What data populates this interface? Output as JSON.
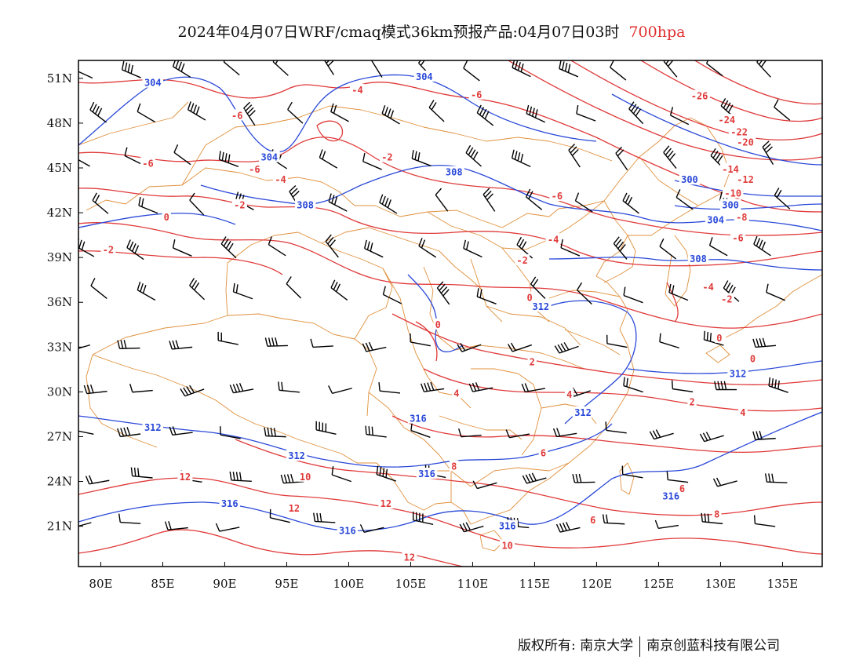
{
  "title": {
    "main": "2024年04月07日WRF/cmaq模式36km预报产品:04月07日03时",
    "level": "700hpa"
  },
  "colors": {
    "height_contour": "#2a49d8",
    "temperature_contour": "#e03a3a",
    "province_border": "#e0903c",
    "wind_barb": "#000000",
    "frame": "#000000",
    "level_text": "#e03030"
  },
  "axes": {
    "lon_ticks": [
      "80E",
      "85E",
      "90E",
      "95E",
      "100E",
      "105E",
      "110E",
      "115E",
      "120E",
      "125E",
      "130E",
      "135E"
    ],
    "lat_ticks": [
      "51N",
      "48N",
      "45N",
      "42N",
      "39N",
      "36N",
      "33N",
      "30N",
      "27N",
      "24N",
      "21N"
    ],
    "lon_values": [
      80,
      85,
      90,
      95,
      100,
      105,
      110,
      115,
      120,
      125,
      130,
      135
    ],
    "lat_values": [
      51,
      48,
      45,
      42,
      39,
      36,
      33,
      30,
      27,
      24,
      21
    ]
  },
  "height_labels": [
    {
      "text": "304",
      "lon": 84.2,
      "lat": 50.7
    },
    {
      "text": "304",
      "lon": 106.1,
      "lat": 51.1
    },
    {
      "text": "304",
      "lon": 93.6,
      "lat": 45.7
    },
    {
      "text": "308",
      "lon": 108.5,
      "lat": 44.7
    },
    {
      "text": "308",
      "lon": 96.5,
      "lat": 42.5
    },
    {
      "text": "300",
      "lon": 127.5,
      "lat": 44.2
    },
    {
      "text": "300",
      "lon": 130.8,
      "lat": 42.5
    },
    {
      "text": "304",
      "lon": 129.6,
      "lat": 41.5
    },
    {
      "text": "308",
      "lon": 128.2,
      "lat": 38.9
    },
    {
      "text": "312",
      "lon": 115.5,
      "lat": 35.7
    },
    {
      "text": "312",
      "lon": 131.4,
      "lat": 31.2
    },
    {
      "text": "312",
      "lon": 118.9,
      "lat": 28.6
    },
    {
      "text": "312",
      "lon": 84.2,
      "lat": 27.6
    },
    {
      "text": "312",
      "lon": 95.8,
      "lat": 25.7
    },
    {
      "text": "316",
      "lon": 105.6,
      "lat": 28.2
    },
    {
      "text": "316",
      "lon": 106.3,
      "lat": 24.5
    },
    {
      "text": "316",
      "lon": 90.4,
      "lat": 22.5
    },
    {
      "text": "316",
      "lon": 99.9,
      "lat": 20.7
    },
    {
      "text": "316",
      "lon": 112.8,
      "lat": 21.0
    },
    {
      "text": "316",
      "lon": 126.0,
      "lat": 23.0
    }
  ],
  "temperature_labels": [
    {
      "text": "-4",
      "lon": 100.7,
      "lat": 50.2
    },
    {
      "text": "-6",
      "lon": 110.3,
      "lat": 49.9
    },
    {
      "text": "-26",
      "lon": 128.3,
      "lat": 49.8
    },
    {
      "text": "-6",
      "lon": 91.0,
      "lat": 48.5
    },
    {
      "text": "-24",
      "lon": 130.5,
      "lat": 48.2
    },
    {
      "text": "-22",
      "lon": 131.5,
      "lat": 47.4
    },
    {
      "text": "-20",
      "lon": 132.0,
      "lat": 46.7
    },
    {
      "text": "-6",
      "lon": 83.8,
      "lat": 45.3
    },
    {
      "text": "-6",
      "lon": 92.4,
      "lat": 44.9
    },
    {
      "text": "-4",
      "lon": 94.5,
      "lat": 44.2
    },
    {
      "text": "-2",
      "lon": 103.1,
      "lat": 45.7
    },
    {
      "text": "-14",
      "lon": 130.8,
      "lat": 44.9
    },
    {
      "text": "-12",
      "lon": 132.0,
      "lat": 44.2
    },
    {
      "text": "-10",
      "lon": 131.0,
      "lat": 43.3
    },
    {
      "text": "-6",
      "lon": 116.8,
      "lat": 43.1
    },
    {
      "text": "-2",
      "lon": 91.2,
      "lat": 42.5
    },
    {
      "text": "-8",
      "lon": 131.7,
      "lat": 41.7
    },
    {
      "text": "0",
      "lon": 85.3,
      "lat": 41.7
    },
    {
      "text": "-4",
      "lon": 116.5,
      "lat": 40.2
    },
    {
      "text": "-6",
      "lon": 131.4,
      "lat": 40.3
    },
    {
      "text": "-2",
      "lon": 80.6,
      "lat": 39.5
    },
    {
      "text": "-2",
      "lon": 114.0,
      "lat": 38.8
    },
    {
      "text": "-4",
      "lon": 129.0,
      "lat": 37.0
    },
    {
      "text": "-2",
      "lon": 130.5,
      "lat": 36.2
    },
    {
      "text": "0",
      "lon": 114.6,
      "lat": 36.3
    },
    {
      "text": "0",
      "lon": 107.2,
      "lat": 34.5
    },
    {
      "text": "0",
      "lon": 129.9,
      "lat": 33.6
    },
    {
      "text": "0",
      "lon": 132.6,
      "lat": 32.2
    },
    {
      "text": "2",
      "lon": 114.8,
      "lat": 32.0
    },
    {
      "text": "4",
      "lon": 108.7,
      "lat": 29.9
    },
    {
      "text": "4",
      "lon": 117.8,
      "lat": 29.8
    },
    {
      "text": "2",
      "lon": 127.7,
      "lat": 29.3
    },
    {
      "text": "4",
      "lon": 131.8,
      "lat": 28.6
    },
    {
      "text": "6",
      "lon": 115.7,
      "lat": 25.9
    },
    {
      "text": "8",
      "lon": 108.5,
      "lat": 25.0
    },
    {
      "text": "10",
      "lon": 96.5,
      "lat": 24.3
    },
    {
      "text": "12",
      "lon": 86.8,
      "lat": 24.3
    },
    {
      "text": "6",
      "lon": 126.9,
      "lat": 23.5
    },
    {
      "text": "12",
      "lon": 95.6,
      "lat": 22.2
    },
    {
      "text": "12",
      "lon": 103.0,
      "lat": 22.5
    },
    {
      "text": "8",
      "lon": 129.7,
      "lat": 21.8
    },
    {
      "text": "6",
      "lon": 119.7,
      "lat": 21.4
    },
    {
      "text": "10",
      "lon": 112.8,
      "lat": 19.7
    },
    {
      "text": "12",
      "lon": 104.9,
      "lat": 18.9
    }
  ],
  "footer": {
    "left": "版权所有: 南京大学",
    "right": "南京创蓝科技有限公司"
  }
}
